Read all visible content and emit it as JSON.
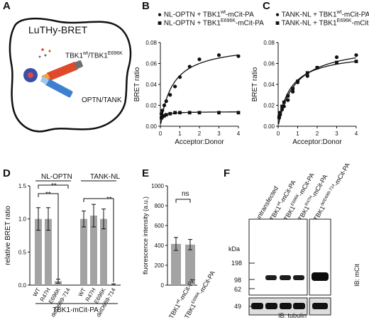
{
  "panel_letters": [
    "A",
    "B",
    "C",
    "D",
    "E",
    "F"
  ],
  "panelA": {
    "title": "LuTHy-BRET",
    "label_tbk1": "TBK1",
    "sup_wt": "wt",
    "slash": "/TBK1",
    "sup_mut": "E696K",
    "label_optn": "OPTN/TANK"
  },
  "panelB": {
    "legend": [
      {
        "pre": "NL-OPTN + TBK1",
        "sup": "wt",
        "post": "-mCit-PA"
      },
      {
        "pre": "NL-OPTN + TBK1",
        "sup": "E696K",
        "post": "-mCit-PA"
      }
    ]
  },
  "panelC": {
    "legend": [
      {
        "pre": "TANK-NL + TBK1",
        "sup": "wt",
        "post": "-mCit-PA"
      },
      {
        "pre": "TANK-NL + TBK1",
        "sup": "E696K",
        "post": "-mCit-PA"
      }
    ]
  },
  "panelD": {
    "group1": "NL-OPTN",
    "group2": "TANK-NL",
    "sig1": "**",
    "sig2": "**",
    "sig3": "**",
    "footer": "TBK1-mCit-PA"
  },
  "panelE": {
    "sig": "ns",
    "xt1_pre": "TBK1",
    "xt1_sup": "wt",
    "xt1_post": "-mCit-PA",
    "xt2_pre": "TBK1",
    "xt2_sup": "E696K",
    "xt2_post": "-mCit-PA"
  },
  "panelF": {
    "lanes": [
      {
        "pre": "untransfected",
        "sup": "",
        "post": ""
      },
      {
        "pre": "TBK1",
        "sup": "wt",
        "post": "-mCit-PA"
      },
      {
        "pre": "TBK1",
        "sup": "E696K",
        "post": "-mCit-PA"
      },
      {
        "pre": "TBK1",
        "sup": "R47H",
        "post": "-mCit-PA"
      },
      {
        "pre": "TBK1",
        "sup": "delD689-714",
        "post": "-mCit-PA"
      }
    ],
    "kda": "kDa",
    "markers": [
      "198",
      "98",
      "62",
      "49"
    ],
    "ib_mcit": "IB: mCit",
    "ib_tubulin": "IB: tubulin"
  },
  "chart_data": [
    {
      "type": "scatter",
      "panel": "B",
      "xlabel": "Acceptor:Donor",
      "ylabel": "BRET ratio",
      "xlim": [
        0,
        4
      ],
      "ylim": [
        0,
        0.08
      ],
      "xticks": [
        0,
        1,
        2,
        3,
        4
      ],
      "yticks": [
        0.0,
        0.02,
        0.04,
        0.06,
        0.08
      ],
      "yticklabels": [
        "0.00",
        "0.02",
        "0.04",
        "0.06",
        "0.08"
      ],
      "series": [
        {
          "name": "NL-OPTN + TBK1wt-mCit-PA",
          "marker": "circle",
          "x": [
            0.05,
            0.1,
            0.2,
            0.3,
            0.5,
            0.75,
            1.0,
            1.5,
            2.0,
            3.0,
            4.0
          ],
          "y": [
            0.012,
            0.015,
            0.02,
            0.024,
            0.03,
            0.038,
            0.047,
            0.057,
            0.064,
            0.068,
            0.067
          ]
        },
        {
          "name": "NL-OPTN + TBK1E696K-mCit-PA",
          "marker": "square",
          "x": [
            0.05,
            0.1,
            0.2,
            0.3,
            0.5,
            0.75,
            1.0,
            1.5,
            2.0,
            3.0,
            4.0
          ],
          "y": [
            0.008,
            0.009,
            0.01,
            0.011,
            0.012,
            0.013,
            0.013,
            0.013,
            0.013,
            0.013,
            0.013
          ]
        }
      ]
    },
    {
      "type": "scatter",
      "panel": "C",
      "xlabel": "Acceptor:Donor",
      "ylabel": "BRET ratio",
      "xlim": [
        0,
        4
      ],
      "ylim": [
        0,
        0.08
      ],
      "xticks": [
        0,
        1,
        2,
        3,
        4
      ],
      "yticks": [
        0.0,
        0.02,
        0.04,
        0.06,
        0.08
      ],
      "yticklabels": [
        "0.00",
        "0.02",
        "0.04",
        "0.06",
        "0.08"
      ],
      "series": [
        {
          "name": "TANK-NL + TBK1wt-mCit-PA",
          "marker": "circle",
          "x": [
            0.05,
            0.1,
            0.2,
            0.3,
            0.5,
            0.75,
            1.0,
            1.5,
            2.0,
            3.0,
            4.0
          ],
          "y": [
            0.008,
            0.011,
            0.016,
            0.019,
            0.025,
            0.033,
            0.042,
            0.048,
            0.056,
            0.066,
            0.068
          ]
        },
        {
          "name": "TANK-NL + TBK1E696K-mCit-PA",
          "marker": "square",
          "x": [
            0.05,
            0.1,
            0.2,
            0.3,
            0.5,
            0.75,
            1.0,
            1.5,
            2.0,
            3.0,
            4.0
          ],
          "y": [
            0.009,
            0.013,
            0.019,
            0.023,
            0.029,
            0.036,
            0.043,
            0.051,
            0.056,
            0.061,
            0.062
          ]
        }
      ]
    },
    {
      "type": "bar",
      "panel": "D",
      "ylabel": "relative BRET ratio",
      "ylim": [
        0,
        1.5
      ],
      "yticks": [
        0,
        0.5,
        1.0,
        1.5
      ],
      "yticklabels": [
        "0.0",
        "0.5",
        "1.0",
        "1.5"
      ],
      "categories": [
        "WT",
        "R47H",
        "E696K",
        "delD689-714",
        "WT",
        "R47H",
        "E696K",
        "delD689-714"
      ],
      "values": [
        1.0,
        1.0,
        0.06,
        0.0,
        1.0,
        1.05,
        1.0,
        0.01
      ],
      "errors": [
        0.17,
        0.17,
        0.03,
        0.0,
        0.12,
        0.17,
        0.15,
        0.01
      ]
    },
    {
      "type": "bar",
      "panel": "E",
      "ylabel": "fluorescence intensity (a.u.)",
      "ylim": [
        0,
        1000
      ],
      "yticks": [
        0,
        200,
        400,
        600,
        800,
        1000
      ],
      "yticklabels": [
        "0",
        "200",
        "400",
        "600",
        "800",
        "1000"
      ],
      "values": [
        415,
        408
      ],
      "errors": [
        65,
        52
      ]
    }
  ]
}
